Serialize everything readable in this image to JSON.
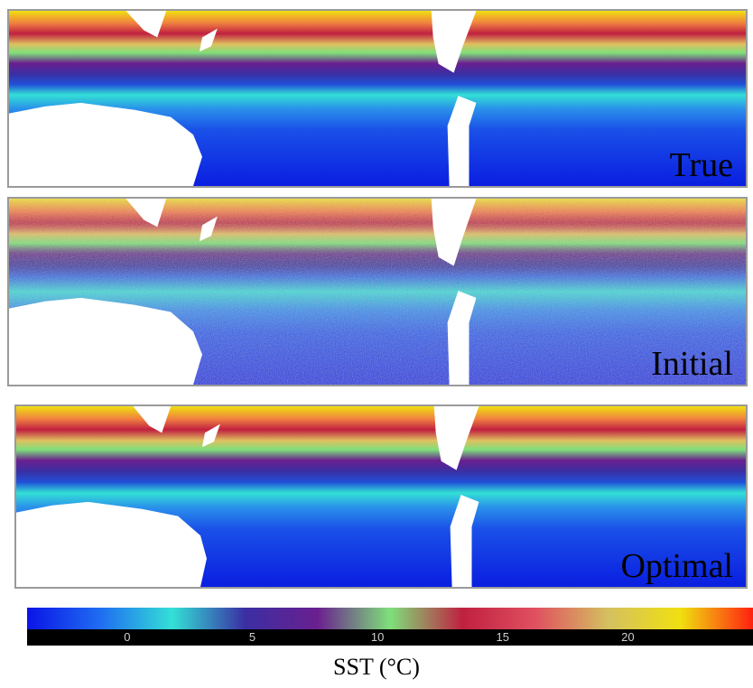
{
  "panels": [
    {
      "id": "true",
      "label": "True"
    },
    {
      "id": "initial",
      "label": "Initial"
    },
    {
      "id": "optimal",
      "label": "Optimal"
    }
  ],
  "colorbar": {
    "title": "SST (°C)",
    "min": -4,
    "max": 25,
    "ticks": [
      0,
      5,
      10,
      15,
      20
    ],
    "tick_labels": [
      "0",
      "5",
      "10",
      "15",
      "20"
    ],
    "colors": [
      "#0a14e6",
      "#1f6cf2",
      "#33e0d6",
      "#3a2fa3",
      "#6a1f8f",
      "#7ee07a",
      "#c02040",
      "#e05060",
      "#d4c060",
      "#f0e010",
      "#ff2010"
    ]
  }
}
